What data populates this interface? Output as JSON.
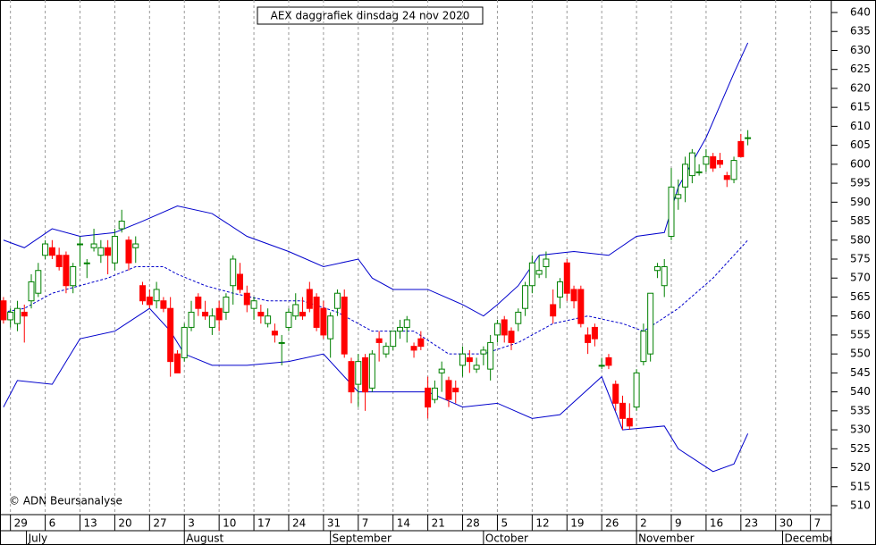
{
  "chart_data": {
    "type": "candlestick",
    "title": "AEX daggrafiek dinsdag 24 nov 2020",
    "copyright": "© ADN Beursanalyse",
    "up_color": "#008000",
    "down_color": "#ff0000",
    "band_color": "#0000cc",
    "grid": true,
    "xlim": [
      -0.5,
      119
    ],
    "ylim": [
      510,
      640
    ],
    "yticks": [
      510,
      515,
      520,
      525,
      530,
      535,
      540,
      545,
      550,
      555,
      560,
      565,
      570,
      575,
      580,
      585,
      590,
      595,
      600,
      605,
      610,
      615,
      620,
      625,
      630,
      635,
      640
    ],
    "xticks": [
      {
        "value": 1,
        "label": "29"
      },
      {
        "value": 6,
        "label": "6"
      },
      {
        "value": 11,
        "label": "13"
      },
      {
        "value": 16,
        "label": "20"
      },
      {
        "value": 21,
        "label": "27"
      },
      {
        "value": 26,
        "label": "3"
      },
      {
        "value": 31,
        "label": "10"
      },
      {
        "value": 36,
        "label": "17"
      },
      {
        "value": 41,
        "label": "24"
      },
      {
        "value": 46,
        "label": "31"
      },
      {
        "value": 51,
        "label": "7"
      },
      {
        "value": 56,
        "label": "14"
      },
      {
        "value": 61,
        "label": "21"
      },
      {
        "value": 66,
        "label": "28"
      },
      {
        "value": 71,
        "label": "5"
      },
      {
        "value": 76,
        "label": "12"
      },
      {
        "value": 81,
        "label": "19"
      },
      {
        "value": 86,
        "label": "26"
      },
      {
        "value": 91,
        "label": "2"
      },
      {
        "value": 96,
        "label": "9"
      },
      {
        "value": 101,
        "label": "16"
      },
      {
        "value": 106,
        "label": "23"
      },
      {
        "value": 111,
        "label": "30"
      },
      {
        "value": 116,
        "label": "7"
      }
    ],
    "months": [
      {
        "value": 3.3,
        "label": "July"
      },
      {
        "value": 26,
        "label": "August"
      },
      {
        "value": 47,
        "label": "September"
      },
      {
        "value": 69,
        "label": "October"
      },
      {
        "value": 91,
        "label": "November"
      },
      {
        "value": 112,
        "label": "December"
      }
    ],
    "candles": [
      [
        564,
        565,
        558,
        559
      ],
      [
        559,
        562,
        557,
        561
      ],
      [
        558,
        564,
        556,
        562
      ],
      [
        561,
        563,
        553,
        560
      ],
      [
        564,
        571,
        562,
        569
      ],
      [
        566,
        574,
        565,
        572
      ],
      [
        576,
        580,
        575,
        579
      ],
      [
        578,
        580,
        575,
        576
      ],
      [
        576,
        578,
        572,
        573
      ],
      [
        576,
        577,
        566,
        568
      ],
      [
        568,
        574,
        566,
        573
      ],
      [
        579,
        581,
        573,
        579
      ],
      [
        574,
        575,
        570,
        574
      ],
      [
        578,
        583,
        577,
        579
      ],
      [
        576,
        580,
        574,
        578
      ],
      [
        578,
        580,
        571,
        576
      ],
      [
        574,
        583,
        572,
        581
      ],
      [
        583,
        588,
        582,
        585
      ],
      [
        580,
        581,
        572,
        574
      ],
      [
        578,
        581,
        574,
        579
      ],
      [
        568,
        569,
        563,
        564
      ],
      [
        565,
        567,
        562,
        563
      ],
      [
        564,
        569,
        562,
        567
      ],
      [
        564,
        565,
        561,
        562
      ],
      [
        562,
        565,
        544,
        548
      ],
      [
        550,
        551,
        545,
        545
      ],
      [
        549,
        558,
        548,
        557
      ],
      [
        557,
        564,
        556,
        561
      ],
      [
        565,
        566,
        560,
        562
      ],
      [
        561,
        564,
        559,
        560
      ],
      [
        557,
        562,
        555,
        560
      ],
      [
        562,
        564,
        556,
        559
      ],
      [
        561,
        566,
        559,
        565
      ],
      [
        568,
        576,
        563,
        575
      ],
      [
        571,
        574,
        566,
        567
      ],
      [
        566,
        568,
        561,
        563
      ],
      [
        562,
        565,
        559,
        564
      ],
      [
        561,
        563,
        558,
        560
      ],
      [
        558,
        562,
        557,
        560
      ],
      [
        556,
        558,
        553,
        555
      ],
      [
        553,
        555,
        547,
        553
      ],
      [
        557,
        562,
        556,
        561
      ],
      [
        560,
        566,
        559,
        563
      ],
      [
        561,
        565,
        559,
        560
      ],
      [
        567,
        569,
        561,
        562
      ],
      [
        565,
        566,
        556,
        557
      ],
      [
        562,
        564,
        554,
        555
      ],
      [
        554,
        561,
        549,
        560
      ],
      [
        562,
        567,
        560,
        566
      ],
      [
        565,
        567,
        549,
        550
      ],
      [
        548,
        549,
        537,
        540
      ],
      [
        542,
        550,
        536,
        548
      ],
      [
        549,
        550,
        535,
        540
      ],
      [
        541,
        551,
        540,
        550
      ],
      [
        554,
        556,
        548,
        553
      ],
      [
        550,
        553,
        549,
        552
      ],
      [
        552,
        556,
        551,
        556
      ],
      [
        556,
        559,
        554,
        557
      ],
      [
        557,
        560,
        553,
        559
      ],
      [
        552,
        553,
        549,
        551
      ],
      [
        554,
        556,
        551,
        552
      ],
      [
        541,
        544,
        533,
        536
      ],
      [
        538,
        543,
        537,
        541
      ],
      [
        545,
        548,
        540,
        546
      ],
      [
        543,
        544,
        536,
        538
      ],
      [
        541,
        543,
        537,
        540
      ],
      [
        547,
        552,
        544,
        550
      ],
      [
        549,
        551,
        545,
        548
      ],
      [
        546,
        549,
        545,
        547
      ],
      [
        550,
        552,
        547,
        551
      ],
      [
        546,
        555,
        543,
        553
      ],
      [
        555,
        559,
        553,
        558
      ],
      [
        559,
        560,
        553,
        555
      ],
      [
        556,
        557,
        551,
        553
      ],
      [
        558,
        562,
        556,
        561
      ],
      [
        562,
        569,
        560,
        568
      ],
      [
        568,
        576,
        566,
        574
      ],
      [
        571,
        576,
        570,
        572
      ],
      [
        573,
        577,
        570,
        575
      ],
      [
        563,
        567,
        558,
        560
      ],
      [
        565,
        570,
        562,
        569
      ],
      [
        574,
        575,
        564,
        566
      ],
      [
        567,
        568,
        562,
        564
      ],
      [
        567,
        568,
        557,
        558
      ],
      [
        555,
        557,
        550,
        553
      ],
      [
        557,
        558,
        552,
        554
      ],
      [
        547,
        549,
        546,
        547
      ],
      [
        549,
        550,
        546,
        547
      ],
      [
        542,
        543,
        535,
        537
      ],
      [
        537,
        539,
        530,
        533
      ],
      [
        533,
        537,
        530,
        531
      ],
      [
        536,
        546,
        535,
        545
      ],
      [
        548,
        558,
        547,
        556
      ],
      [
        550,
        566,
        548,
        566
      ],
      [
        572,
        574,
        570,
        573
      ],
      [
        568,
        575,
        565,
        573
      ],
      [
        581,
        599,
        580,
        594
      ],
      [
        591,
        596,
        588,
        592
      ],
      [
        594,
        602,
        590,
        600
      ],
      [
        597,
        604,
        595,
        603
      ],
      [
        598,
        600,
        597,
        598
      ],
      [
        600,
        604,
        598,
        602
      ],
      [
        602,
        603,
        598,
        599
      ],
      [
        601,
        603,
        599,
        600
      ],
      [
        597,
        598,
        594,
        596
      ],
      [
        596,
        602,
        595,
        601
      ],
      [
        606,
        608,
        602,
        602
      ],
      [
        607,
        609,
        605,
        607
      ]
    ],
    "bands": [
      {
        "x": [
          0,
          3,
          7,
          11,
          16,
          20,
          25,
          30,
          35,
          41,
          46,
          51,
          53,
          56,
          61,
          66,
          69,
          71,
          74,
          77,
          82,
          87,
          91,
          95,
          97,
          101,
          105,
          107
        ],
        "values": [
          580,
          578,
          583,
          581,
          582,
          585,
          589,
          587,
          581,
          577,
          573,
          575,
          570,
          567,
          567,
          563,
          560,
          563,
          568,
          576,
          577,
          576,
          581,
          582,
          594,
          607,
          624,
          632
        ]
      },
      {
        "x": [
          0,
          3,
          7,
          11,
          15,
          19,
          23,
          25,
          29,
          33,
          38,
          43,
          48,
          53,
          59,
          64,
          69,
          74,
          79,
          84,
          89,
          92,
          97,
          102,
          107
        ],
        "values": [
          561,
          562,
          566,
          568,
          570,
          573,
          573,
          571,
          568,
          566,
          564,
          564,
          561,
          556,
          556,
          550,
          550,
          553,
          558,
          560,
          558,
          556,
          562,
          570,
          580
        ],
        "dashed": true
      },
      {
        "x": [
          0,
          2,
          7,
          11,
          16,
          21,
          24,
          26,
          30,
          35,
          41,
          46,
          51,
          56,
          61,
          66,
          71,
          76,
          80,
          86,
          89,
          95,
          97,
          102,
          105,
          107
        ],
        "values": [
          536,
          543,
          542,
          554,
          556,
          562,
          556,
          550,
          547,
          547,
          548,
          550,
          540,
          540,
          540,
          536,
          537,
          533,
          534,
          544,
          530,
          531,
          525,
          519,
          521,
          529
        ]
      }
    ]
  }
}
